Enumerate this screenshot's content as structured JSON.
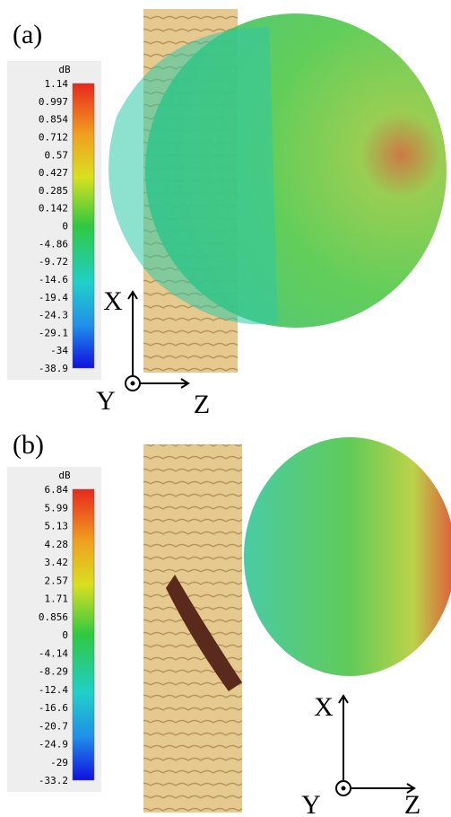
{
  "panels": [
    {
      "label": "(a)",
      "colorbar": {
        "unit": "dB",
        "ticks": [
          "1.14",
          "0.997",
          "0.854",
          "0.712",
          "0.57",
          "0.427",
          "0.285",
          "0.142",
          "0",
          "-4.86",
          "-9.72",
          "-14.6",
          "-19.4",
          "-24.3",
          "-29.1",
          "-34",
          "-38.9"
        ]
      },
      "axes": {
        "x": "X",
        "y": "Y",
        "z": "Z"
      }
    },
    {
      "label": "(b)",
      "colorbar": {
        "unit": "dB",
        "ticks": [
          "6.84",
          "5.99",
          "5.13",
          "4.28",
          "3.42",
          "2.57",
          "1.71",
          "0.856",
          "0",
          "-4.14",
          "-8.29",
          "-12.4",
          "-16.6",
          "-20.7",
          "-24.9",
          "-29",
          "-33.2"
        ]
      },
      "axes": {
        "x": "X",
        "y": "Y",
        "z": "Z"
      }
    }
  ]
}
